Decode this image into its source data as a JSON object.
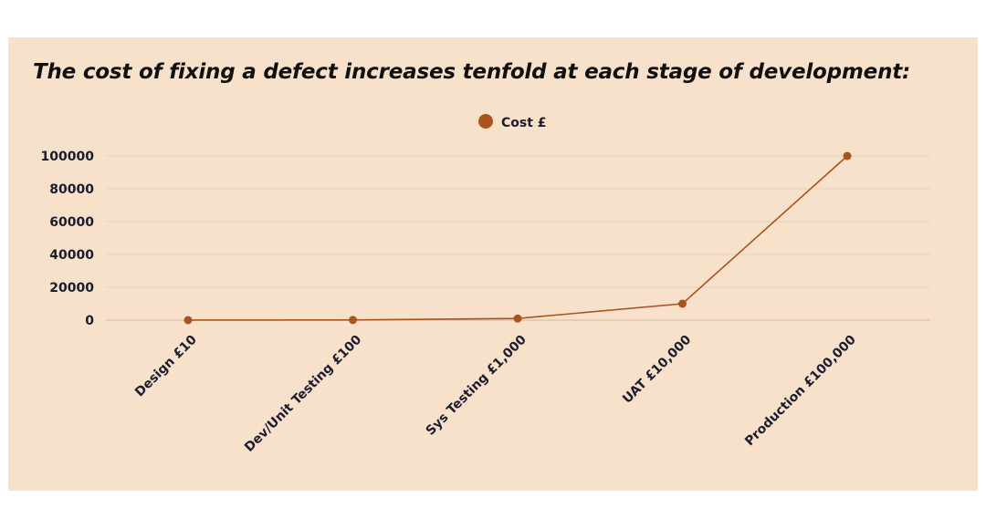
{
  "title": "The cost of fixing a defect increases tenfold at each stage of development:",
  "chart_data": {
    "type": "line",
    "title": "The cost of fixing a defect increases tenfold at each stage of development:",
    "categories": [
      "Design £10",
      "Dev/Unit Testing £100",
      "Sys Testing £1,000",
      "UAT £10,000",
      "Production £100,000"
    ],
    "series": [
      {
        "name": "Cost £",
        "values": [
          10,
          100,
          1000,
          10000,
          100000
        ],
        "color": "#a8541f"
      }
    ],
    "y_ticks": [
      0,
      20000,
      40000,
      60000,
      80000,
      100000
    ],
    "ylim": [
      0,
      100000
    ],
    "xlabel": "",
    "ylabel": "",
    "grid": true,
    "legend_position": "top-center",
    "colors": {
      "background": "#f7e1ca",
      "grid": "#e6d2bd",
      "axis": "#d2b89e",
      "line": "#a8541f"
    }
  }
}
